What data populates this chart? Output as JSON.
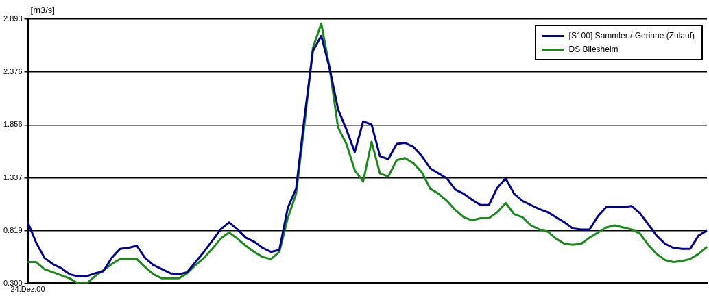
{
  "chart_data": {
    "type": "line",
    "ylabel": "[m3/s]",
    "categories": [
      "24.Dez.00",
      null,
      null,
      null,
      null,
      null,
      null,
      null,
      null,
      null,
      null,
      null,
      null,
      null,
      null,
      null,
      null,
      null,
      null,
      null,
      null,
      null,
      null,
      null,
      null,
      null,
      null,
      null,
      null,
      null,
      null,
      null,
      null,
      null,
      null,
      null,
      null,
      null,
      null,
      null,
      null,
      null,
      null,
      null,
      null,
      null,
      null,
      null,
      null,
      null,
      null,
      null,
      null,
      null,
      null,
      null,
      null,
      null,
      null,
      null,
      null,
      null,
      null,
      null,
      null,
      null,
      null,
      null,
      null,
      null,
      null,
      null,
      null,
      null,
      null,
      null,
      null,
      null,
      null,
      null,
      null,
      null
    ],
    "series": [
      {
        "name": "[S100] Sammler / Gerinne (Zulauf)",
        "color": "#00008b",
        "values": [
          0.9,
          0.7,
          0.55,
          0.49,
          0.45,
          0.39,
          0.37,
          0.37,
          0.4,
          0.42,
          0.55,
          0.64,
          0.65,
          0.67,
          0.55,
          0.48,
          0.44,
          0.4,
          0.39,
          0.41,
          0.51,
          0.61,
          0.72,
          0.83,
          0.9,
          0.83,
          0.75,
          0.71,
          0.65,
          0.61,
          0.63,
          1.04,
          1.23,
          1.93,
          2.58,
          2.73,
          2.41,
          2.01,
          1.81,
          1.59,
          1.89,
          1.86,
          1.55,
          1.52,
          1.67,
          1.68,
          1.64,
          1.55,
          1.43,
          1.38,
          1.33,
          1.22,
          1.18,
          1.12,
          1.07,
          1.07,
          1.24,
          1.33,
          1.18,
          1.11,
          1.07,
          1.03,
          1.0,
          0.95,
          0.9,
          0.84,
          0.83,
          0.83,
          0.96,
          1.05,
          1.05,
          1.05,
          1.06,
          0.99,
          0.88,
          0.77,
          0.69,
          0.65,
          0.64,
          0.64,
          0.77,
          0.82
        ]
      },
      {
        "name": "DS Bliesheim",
        "color": "#1a8a1a",
        "values": [
          0.51,
          0.51,
          0.44,
          0.41,
          0.38,
          0.35,
          0.3,
          0.3,
          0.37,
          0.43,
          0.49,
          0.54,
          0.54,
          0.54,
          0.46,
          0.39,
          0.35,
          0.35,
          0.35,
          0.4,
          0.48,
          0.55,
          0.64,
          0.74,
          0.8,
          0.74,
          0.67,
          0.61,
          0.56,
          0.54,
          0.61,
          0.94,
          1.18,
          1.86,
          2.61,
          2.85,
          2.41,
          1.83,
          1.67,
          1.41,
          1.3,
          1.69,
          1.38,
          1.35,
          1.51,
          1.53,
          1.48,
          1.39,
          1.23,
          1.18,
          1.11,
          1.02,
          0.95,
          0.92,
          0.94,
          0.94,
          1.0,
          1.09,
          0.98,
          0.95,
          0.87,
          0.83,
          0.81,
          0.74,
          0.69,
          0.68,
          0.69,
          0.75,
          0.8,
          0.85,
          0.87,
          0.85,
          0.83,
          0.79,
          0.68,
          0.59,
          0.53,
          0.51,
          0.52,
          0.54,
          0.59,
          0.66
        ]
      }
    ],
    "ylim": [
      0.3,
      2.893
    ],
    "yticks": [
      {
        "value": 0.3,
        "label": "0.300"
      },
      {
        "value": 0.819,
        "label": "0.819"
      },
      {
        "value": 1.337,
        "label": "1.337"
      },
      {
        "value": 1.856,
        "label": "1.856"
      },
      {
        "value": 2.376,
        "label": "2.376"
      },
      {
        "value": 2.893,
        "label": "2.893"
      }
    ],
    "grid": "y",
    "legend": "top right",
    "line_style": "solid"
  }
}
